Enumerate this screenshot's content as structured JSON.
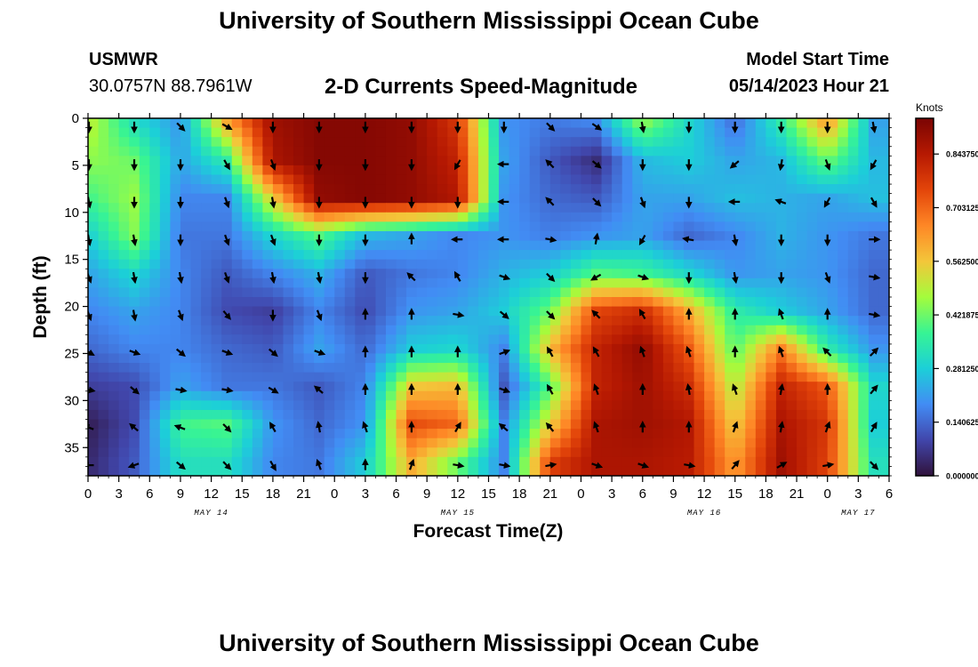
{
  "header": {
    "title": "University of Southern Mississippi Ocean Cube",
    "station": "USMWR",
    "coordinates": "30.0757N  88.7961W",
    "subtitle": "2-D Currents Speed-Magnitude",
    "model_start_label": "Model Start Time",
    "model_start_value": "05/14/2023 Hour 21"
  },
  "footer": {
    "title": "University of Southern Mississippi Ocean Cube"
  },
  "chart_data": {
    "type": "heatmap",
    "xlabel": "Forecast Time(Z)",
    "ylabel": "Depth (ft)",
    "x_tick_labels": [
      "0",
      "3",
      "6",
      "9",
      "12",
      "15",
      "18",
      "21",
      "0",
      "3",
      "6",
      "9",
      "12",
      "15",
      "18",
      "21",
      "0",
      "3",
      "6",
      "9",
      "12",
      "15",
      "18",
      "21",
      "0",
      "3",
      "6"
    ],
    "date_labels": [
      {
        "label": "MAY 14",
        "hour_index": 12
      },
      {
        "label": "MAY 15",
        "hour_index": 36
      },
      {
        "label": "MAY 16",
        "hour_index": 60
      },
      {
        "label": "MAY 17",
        "hour_index": 75
      }
    ],
    "y_ticks": [
      0,
      5,
      10,
      15,
      20,
      25,
      30,
      35
    ],
    "ylim": [
      0,
      38
    ],
    "x_range_hours": [
      0,
      78
    ],
    "colorbar": {
      "unit": "Knots",
      "tick_labels": [
        "0.000000",
        "0.140625",
        "0.281250",
        "0.421875",
        "0.562500",
        "0.703125",
        "0.843750"
      ],
      "range": [
        0,
        0.9375
      ]
    },
    "depths": [
      0.5,
      4.5,
      8.5,
      12.5,
      16.5,
      20.5,
      24.5,
      28.5,
      32.5,
      36.5
    ],
    "times": [
      0,
      4.5,
      9,
      13.5,
      18,
      22.5,
      27,
      31.5,
      36,
      40.5,
      45,
      49.5,
      54,
      58.5,
      63,
      67.5,
      72,
      76.5
    ],
    "speed": [
      [
        0.5,
        0.32,
        0.2,
        0.6,
        0.88,
        0.92,
        0.92,
        0.9,
        0.78,
        0.2,
        0.16,
        0.18,
        0.45,
        0.3,
        0.15,
        0.35,
        0.62,
        0.22
      ],
      [
        0.45,
        0.42,
        0.22,
        0.35,
        0.86,
        0.92,
        0.92,
        0.9,
        0.82,
        0.22,
        0.12,
        0.05,
        0.25,
        0.28,
        0.22,
        0.25,
        0.42,
        0.25
      ],
      [
        0.38,
        0.46,
        0.18,
        0.18,
        0.55,
        0.9,
        0.92,
        0.9,
        0.85,
        0.2,
        0.14,
        0.12,
        0.22,
        0.22,
        0.26,
        0.24,
        0.22,
        0.26
      ],
      [
        0.28,
        0.44,
        0.16,
        0.16,
        0.3,
        0.4,
        0.25,
        0.22,
        0.18,
        0.2,
        0.17,
        0.2,
        0.22,
        0.14,
        0.18,
        0.24,
        0.2,
        0.16
      ],
      [
        0.22,
        0.3,
        0.18,
        0.12,
        0.18,
        0.24,
        0.12,
        0.16,
        0.18,
        0.24,
        0.28,
        0.4,
        0.38,
        0.3,
        0.2,
        0.22,
        0.2,
        0.14
      ],
      [
        0.18,
        0.22,
        0.18,
        0.1,
        0.08,
        0.18,
        0.1,
        0.2,
        0.22,
        0.28,
        0.42,
        0.75,
        0.8,
        0.6,
        0.35,
        0.28,
        0.22,
        0.14
      ],
      [
        0.14,
        0.18,
        0.18,
        0.14,
        0.12,
        0.22,
        0.14,
        0.28,
        0.3,
        0.18,
        0.58,
        0.82,
        0.9,
        0.72,
        0.4,
        0.66,
        0.35,
        0.2
      ],
      [
        0.08,
        0.1,
        0.22,
        0.16,
        0.16,
        0.12,
        0.18,
        0.56,
        0.58,
        0.12,
        0.4,
        0.82,
        0.88,
        0.8,
        0.48,
        0.82,
        0.72,
        0.3
      ],
      [
        0.02,
        0.1,
        0.38,
        0.4,
        0.2,
        0.14,
        0.2,
        0.74,
        0.7,
        0.18,
        0.55,
        0.86,
        0.88,
        0.85,
        0.55,
        0.86,
        0.78,
        0.28
      ],
      [
        0.04,
        0.12,
        0.32,
        0.32,
        0.18,
        0.16,
        0.28,
        0.6,
        0.42,
        0.18,
        0.76,
        0.86,
        0.86,
        0.84,
        0.62,
        0.88,
        0.76,
        0.32
      ]
    ],
    "vector_angle_deg": [
      [
        90,
        90,
        45,
        30,
        90,
        90,
        90,
        90,
        90,
        90,
        45,
        35,
        80,
        90,
        90,
        90,
        90,
        80
      ],
      [
        90,
        90,
        90,
        60,
        70,
        90,
        90,
        90,
        120,
        180,
        225,
        40,
        90,
        90,
        140,
        100,
        70,
        120
      ],
      [
        80,
        90,
        90,
        70,
        80,
        90,
        90,
        90,
        90,
        180,
        225,
        45,
        70,
        90,
        180,
        200,
        120,
        60
      ],
      [
        80,
        80,
        90,
        70,
        70,
        90,
        90,
        270,
        180,
        180,
        10,
        280,
        120,
        190,
        80,
        90,
        90,
        0
      ],
      [
        70,
        80,
        80,
        70,
        80,
        80,
        90,
        225,
        240,
        20,
        45,
        150,
        20,
        90,
        80,
        90,
        70,
        10
      ],
      [
        70,
        80,
        70,
        50,
        90,
        70,
        270,
        270,
        10,
        40,
        45,
        225,
        240,
        270,
        270,
        250,
        270,
        10
      ],
      [
        30,
        20,
        40,
        20,
        40,
        20,
        270,
        270,
        270,
        340,
        240,
        240,
        250,
        250,
        270,
        250,
        225,
        315
      ],
      [
        10,
        40,
        10,
        10,
        30,
        220,
        270,
        270,
        270,
        20,
        240,
        250,
        270,
        260,
        250,
        280,
        270,
        310
      ],
      [
        200,
        220,
        200,
        45,
        240,
        260,
        250,
        270,
        300,
        220,
        230,
        250,
        270,
        270,
        290,
        280,
        290,
        300
      ],
      [
        180,
        160,
        40,
        45,
        60,
        250,
        270,
        290,
        10,
        10,
        350,
        20,
        20,
        10,
        310,
        330,
        350,
        45
      ]
    ]
  }
}
